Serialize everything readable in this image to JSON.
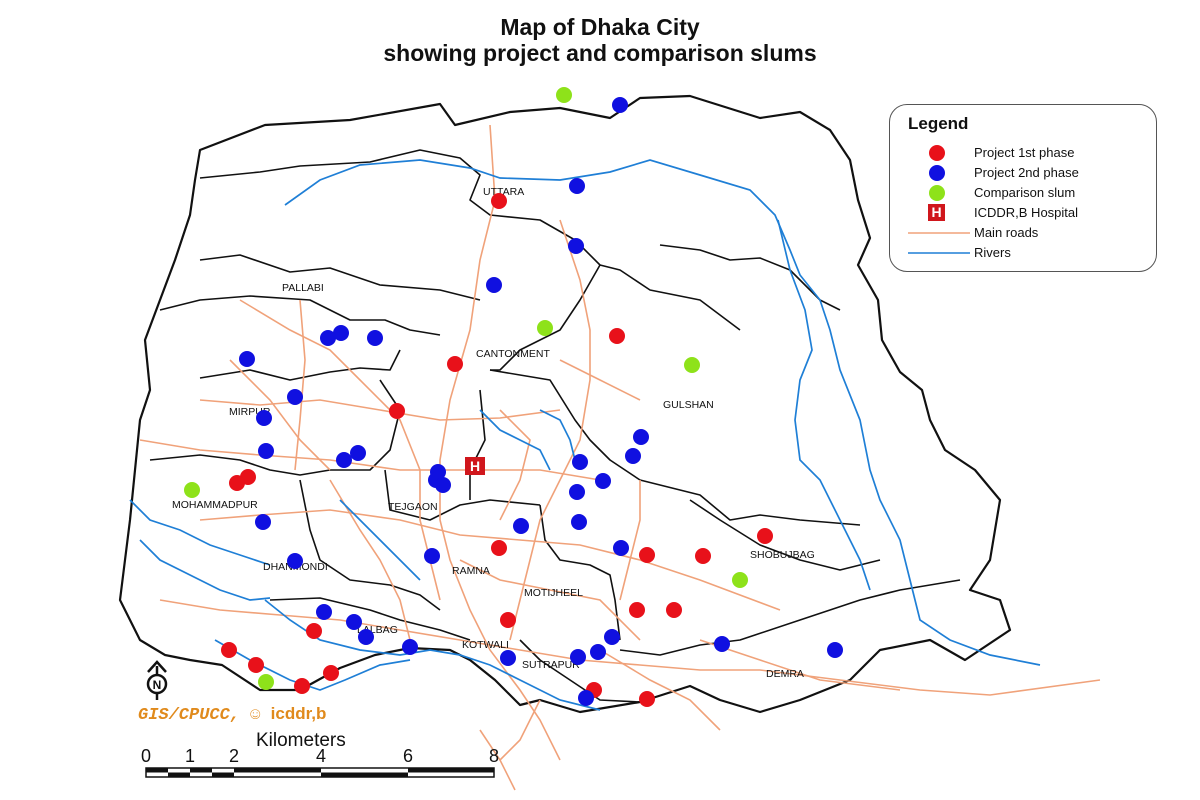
{
  "title": {
    "line1": "Map of Dhaka City",
    "line2": "showing project and comparison slums"
  },
  "legend": {
    "title": "Legend",
    "items": [
      {
        "key": "phase1",
        "label": "Project 1st phase",
        "color": "#e8111a"
      },
      {
        "key": "phase2",
        "label": "Project 2nd phase",
        "color": "#1010e0"
      },
      {
        "key": "comparison",
        "label": "Comparison slum",
        "color": "#8ee21a"
      },
      {
        "key": "hospital",
        "label": "ICDDR,B Hospital",
        "color": "#d0161c",
        "icon_text": "H"
      },
      {
        "key": "roads",
        "label": "Main roads",
        "color": "#f0a27a"
      },
      {
        "key": "rivers",
        "label": "Rivers",
        "color": "#1f7fd6"
      }
    ]
  },
  "areas": [
    "UTTARA",
    "PALLABI",
    "CANTONMENT",
    "GULSHAN",
    "MIRPUR",
    "TEJGAON",
    "MOHAMMADPUR",
    "DHANMONDI",
    "RAMNA",
    "MOTIJHEEL",
    "SHOBUJBAG",
    "LALBAG",
    "KOTWALI",
    "SUTRAPUR",
    "DEMRA"
  ],
  "credit": {
    "org": "GIS/CPUCC,",
    "brand": "icddr,b"
  },
  "scale": {
    "title": "Kilometers",
    "ticks": [
      "0",
      "1",
      "2",
      "4",
      "6",
      "8"
    ]
  },
  "north_label": "N"
}
